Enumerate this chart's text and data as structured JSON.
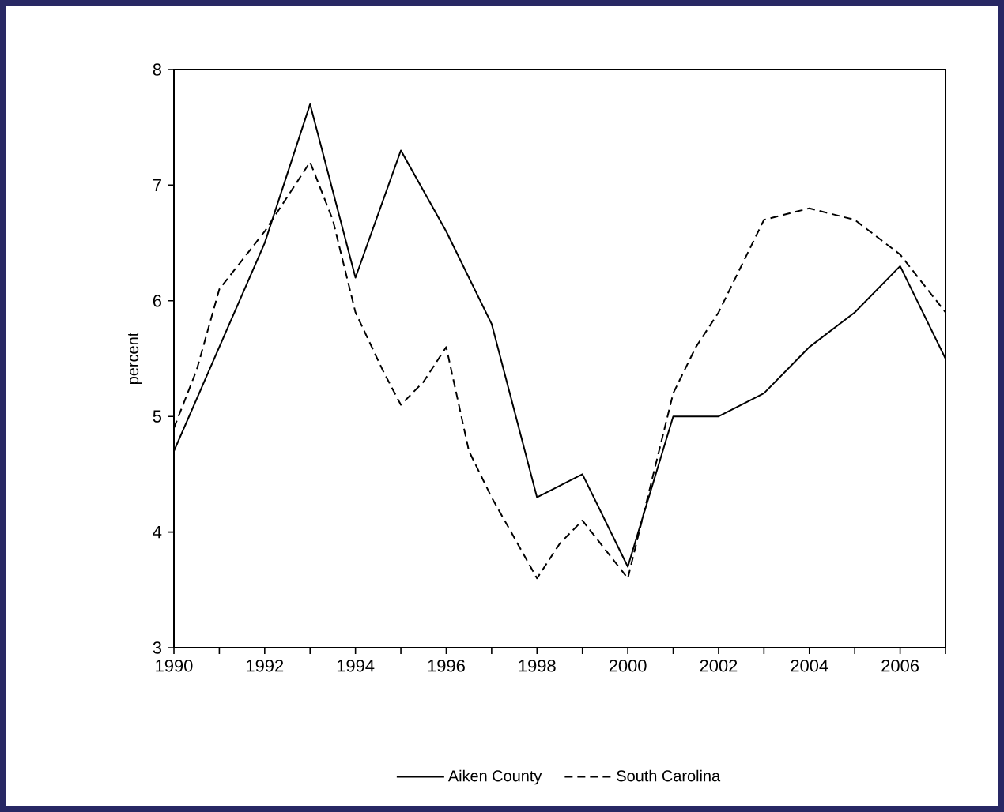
{
  "chart_data": {
    "type": "line",
    "ylabel": "percent",
    "xlim": [
      1990,
      2007
    ],
    "ylim": [
      3,
      8
    ],
    "xticks": [
      1990,
      {
        "value": 1991,
        "label": null
      },
      1992,
      {
        "value": 1993,
        "label": null
      },
      1994,
      {
        "value": 1995,
        "label": null
      },
      1996,
      {
        "value": 1997,
        "label": null
      },
      1998,
      {
        "value": 1999,
        "label": null
      },
      2000,
      {
        "value": 2001,
        "label": null
      },
      2002,
      {
        "value": 2003,
        "label": null
      },
      2004,
      {
        "value": 2005,
        "label": null
      },
      2006,
      {
        "value": 2007,
        "label": null
      }
    ],
    "yticks": [
      3,
      4,
      5,
      6,
      7,
      8
    ],
    "legend": "bottom",
    "grid": false,
    "series": [
      {
        "name": "Aiken County",
        "color": "#000000",
        "line_style": "solid",
        "x": [
          1990,
          1991,
          1992,
          1993,
          1994,
          1995,
          1996,
          1997,
          1998,
          1999,
          2000,
          2001,
          2002,
          2003,
          2004,
          2005,
          2006,
          2007
        ],
        "values": [
          4.7,
          5.6,
          6.5,
          7.7,
          6.2,
          7.3,
          6.6,
          5.8,
          4.3,
          4.5,
          3.7,
          5.0,
          5.0,
          5.2,
          5.6,
          5.9,
          6.3,
          5.5
        ]
      },
      {
        "name": "South Carolina",
        "color": "#000000",
        "line_style": "dashed",
        "x": [
          1990,
          1990.5,
          1991,
          1992,
          1993,
          1993.5,
          1994,
          1994.6,
          1995,
          1995.5,
          1996,
          1996.5,
          1997,
          1998,
          1998.5,
          1999,
          2000,
          2001,
          2001.5,
          2002,
          2002.5,
          2003,
          2004,
          2005,
          2006,
          2007
        ],
        "values": [
          4.9,
          5.4,
          6.1,
          6.6,
          7.2,
          6.7,
          5.9,
          5.4,
          5.1,
          5.3,
          5.6,
          4.7,
          4.3,
          3.6,
          3.9,
          4.1,
          3.6,
          5.2,
          5.6,
          5.9,
          6.3,
          6.7,
          6.8,
          6.7,
          6.4,
          5.9
        ]
      }
    ]
  }
}
